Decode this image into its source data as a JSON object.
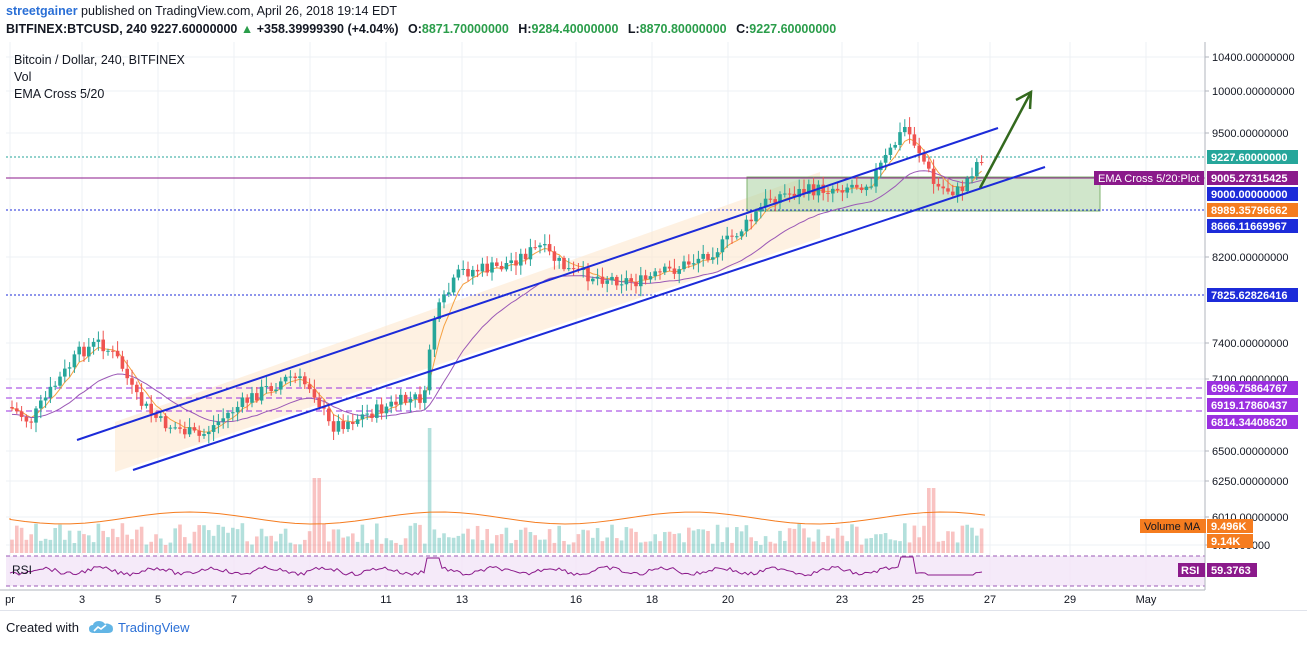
{
  "header": {
    "user": "streetgainer",
    "published": " published on TradingView.com, April 26, 2018 19:14 EDT",
    "symbol": "BITFINEX:BTCUSD, 240",
    "last": "9227.60000000",
    "change": "+358.39999390 (+4.04%)",
    "o_label": "O:",
    "o_value": "8871.70000000",
    "h_label": "H:",
    "h_value": "9284.40000000",
    "l_label": "L:",
    "l_value": "8870.80000000",
    "c_label": "C:",
    "c_value": "9227.60000000"
  },
  "legend": {
    "title": "Bitcoin / Dollar, 240, BITFINEX",
    "vol": "Vol",
    "ema": "EMA Cross 5/20"
  },
  "rsi_label": "RSI",
  "footer": {
    "created": "Created with",
    "brand": "TradingView"
  },
  "chart_data": {
    "type": "candlestick",
    "y_ticks": [
      "10400.00000000",
      "10000.00000000",
      "9500.00000000",
      "8200.00000000",
      "7400.00000000",
      "7100.00000000",
      "6500.00000000",
      "6250.00000000",
      "6010.00000000",
      "0.00000000"
    ],
    "x_ticks": [
      "pr",
      "3",
      "5",
      "7",
      "9",
      "11",
      "13",
      "16",
      "18",
      "20",
      "23",
      "25",
      "27",
      "29",
      "May"
    ],
    "price_labels": [
      {
        "text": "9227.60000000",
        "color": "#26a69a"
      },
      {
        "text": "9005.27315425",
        "color": "#8b1a8b"
      },
      {
        "text": "9000.00000000",
        "color": "#1c2bd9"
      },
      {
        "text": "8989.35796662",
        "color": "#f57c1f"
      },
      {
        "text": "8666.11669967",
        "color": "#1c2bd9"
      },
      {
        "text": "7825.62826416",
        "color": "#1c2bd9"
      },
      {
        "text": "6996.75864767",
        "color": "#9b30e0"
      },
      {
        "text": "6919.17860437",
        "color": "#9b30e0"
      },
      {
        "text": "6814.34408620",
        "color": "#9b30e0"
      }
    ],
    "ema_tag": "EMA Cross 5/20:Plot",
    "volume_labels": [
      {
        "text": "Volume MA",
        "value": "9.496K",
        "color": "#f57c1f"
      },
      {
        "text": "",
        "value": "9.14K",
        "color": "#f57c1f"
      }
    ],
    "rsi_value": "59.3763",
    "colors": {
      "up": "#26a69a",
      "down": "#ef5350",
      "channel": "#1c2bd9",
      "ema_fast": "#f5a142",
      "ema_slow": "#9b59b6"
    }
  }
}
